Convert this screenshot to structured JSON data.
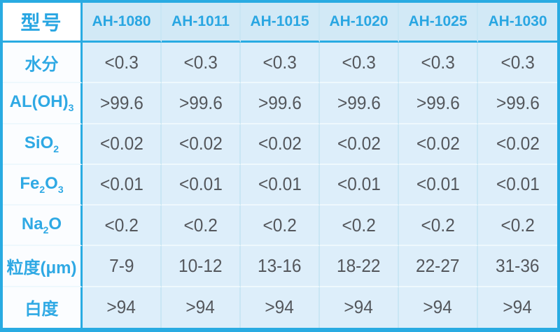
{
  "colors": {
    "frame_border": "#29abe2",
    "header_text": "#29a6e2",
    "value_text": "#54575c",
    "data_cell_bg": "#ddeefa",
    "header_cell_bg": "#d2e9f6",
    "label_cell_bg": "#fbfdff",
    "light_grid_vertical": "#c9e6f4",
    "light_grid_horizontal": "#eef8fd"
  },
  "table": {
    "corner_label": "型号",
    "columns": [
      "AH-1080",
      "AH-1011",
      "AH-1015",
      "AH-1020",
      "AH-1025",
      "AH-1030"
    ],
    "rows": [
      {
        "label": [
          [
            "水分",
            false
          ]
        ],
        "values": [
          "<0.3",
          "<0.3",
          "<0.3",
          "<0.3",
          "<0.3",
          "<0.3"
        ]
      },
      {
        "label": [
          [
            "AL(OH)",
            false
          ],
          [
            "3",
            true
          ]
        ],
        "values": [
          ">99.6",
          ">99.6",
          ">99.6",
          ">99.6",
          ">99.6",
          ">99.6"
        ]
      },
      {
        "label": [
          [
            "SiO",
            false
          ],
          [
            "2",
            true
          ]
        ],
        "values": [
          "<0.02",
          "<0.02",
          "<0.02",
          "<0.02",
          "<0.02",
          "<0.02"
        ]
      },
      {
        "label": [
          [
            "Fe",
            false
          ],
          [
            "2",
            true
          ],
          [
            "O",
            false
          ],
          [
            "3",
            true
          ]
        ],
        "values": [
          "<0.01",
          "<0.01",
          "<0.01",
          "<0.01",
          "<0.01",
          "<0.01"
        ]
      },
      {
        "label": [
          [
            "Na",
            false
          ],
          [
            "2",
            true
          ],
          [
            "O",
            false
          ]
        ],
        "values": [
          "<0.2",
          "<0.2",
          "<0.2",
          "<0.2",
          "<0.2",
          "<0.2"
        ]
      },
      {
        "label": [
          [
            "粒度(μm)",
            false
          ]
        ],
        "values": [
          "7-9",
          "10-12",
          "13-16",
          "18-22",
          "22-27",
          "31-36"
        ]
      },
      {
        "label": [
          [
            "白度",
            false
          ]
        ],
        "values": [
          ">94",
          ">94",
          ">94",
          ">94",
          ">94",
          ">94"
        ]
      }
    ]
  },
  "chart_data": {
    "type": "table",
    "title": "",
    "columns": [
      "型号",
      "AH-1080",
      "AH-1011",
      "AH-1015",
      "AH-1020",
      "AH-1025",
      "AH-1030"
    ],
    "rows": [
      [
        "水分",
        "<0.3",
        "<0.3",
        "<0.3",
        "<0.3",
        "<0.3",
        "<0.3"
      ],
      [
        "AL(OH)3",
        ">99.6",
        ">99.6",
        ">99.6",
        ">99.6",
        ">99.6",
        ">99.6"
      ],
      [
        "SiO2",
        "<0.02",
        "<0.02",
        "<0.02",
        "<0.02",
        "<0.02",
        "<0.02"
      ],
      [
        "Fe2O3",
        "<0.01",
        "<0.01",
        "<0.01",
        "<0.01",
        "<0.01",
        "<0.01"
      ],
      [
        "Na2O",
        "<0.2",
        "<0.2",
        "<0.2",
        "<0.2",
        "<0.2",
        "<0.2"
      ],
      [
        "粒度(μm)",
        "7-9",
        "10-12",
        "13-16",
        "18-22",
        "22-27",
        "31-36"
      ],
      [
        "白度",
        ">94",
        ">94",
        ">94",
        ">94",
        ">94",
        ">94"
      ]
    ]
  }
}
